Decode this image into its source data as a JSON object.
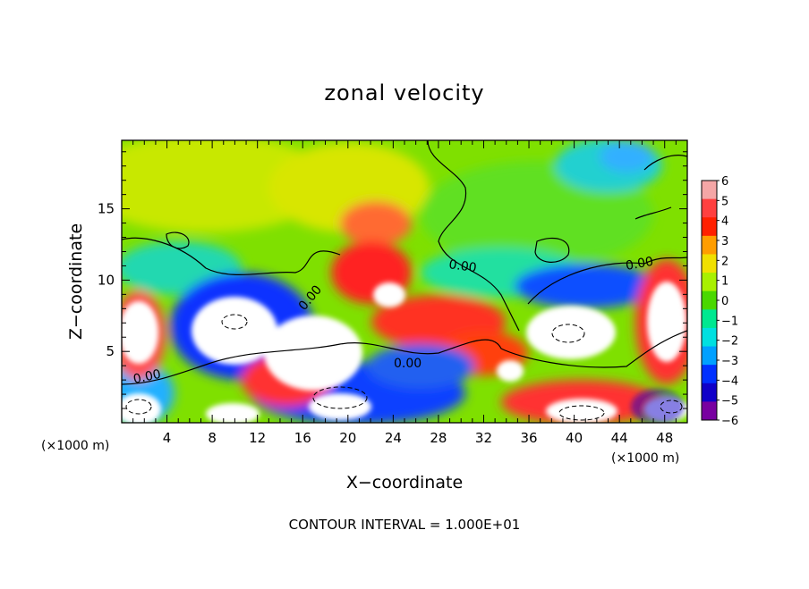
{
  "chart_data": {
    "type": "heatmap",
    "title": "zonal velocity",
    "xlabel": "X−coordinate",
    "ylabel": "Z−coordinate",
    "x_unit_left": "(×1000 m)",
    "x_unit_right": "(×1000 m)",
    "xlim": [
      0,
      50
    ],
    "ylim": [
      0,
      19.8
    ],
    "x_ticks": [
      4,
      8,
      12,
      16,
      20,
      24,
      28,
      32,
      36,
      40,
      44,
      48
    ],
    "y_ticks": [
      5,
      10,
      15
    ],
    "colorbar": {
      "levels": [
        6,
        5,
        4,
        3,
        2,
        1,
        0,
        -1,
        -2,
        -3,
        -4,
        -5,
        -6
      ],
      "level_labels": [
        "6",
        "5",
        "4",
        "3",
        "2",
        "1",
        "0",
        "−1",
        "−2",
        "−3",
        "−4",
        "−5",
        "−6"
      ],
      "colors": [
        "#f4a6a6",
        "#ff4040",
        "#ff2000",
        "#ff9d00",
        "#f0e000",
        "#a8f000",
        "#4ad800",
        "#00e890",
        "#00e0e0",
        "#00a0ff",
        "#0030ff",
        "#1000c8",
        "#7800a0"
      ]
    },
    "contour_labels": [
      "0.00",
      "0.00",
      "0.00",
      "0.00",
      "0.00"
    ],
    "footer": "CONTOUR INTERVAL = 1.000E+01",
    "grid": false,
    "legend_position": "right"
  }
}
